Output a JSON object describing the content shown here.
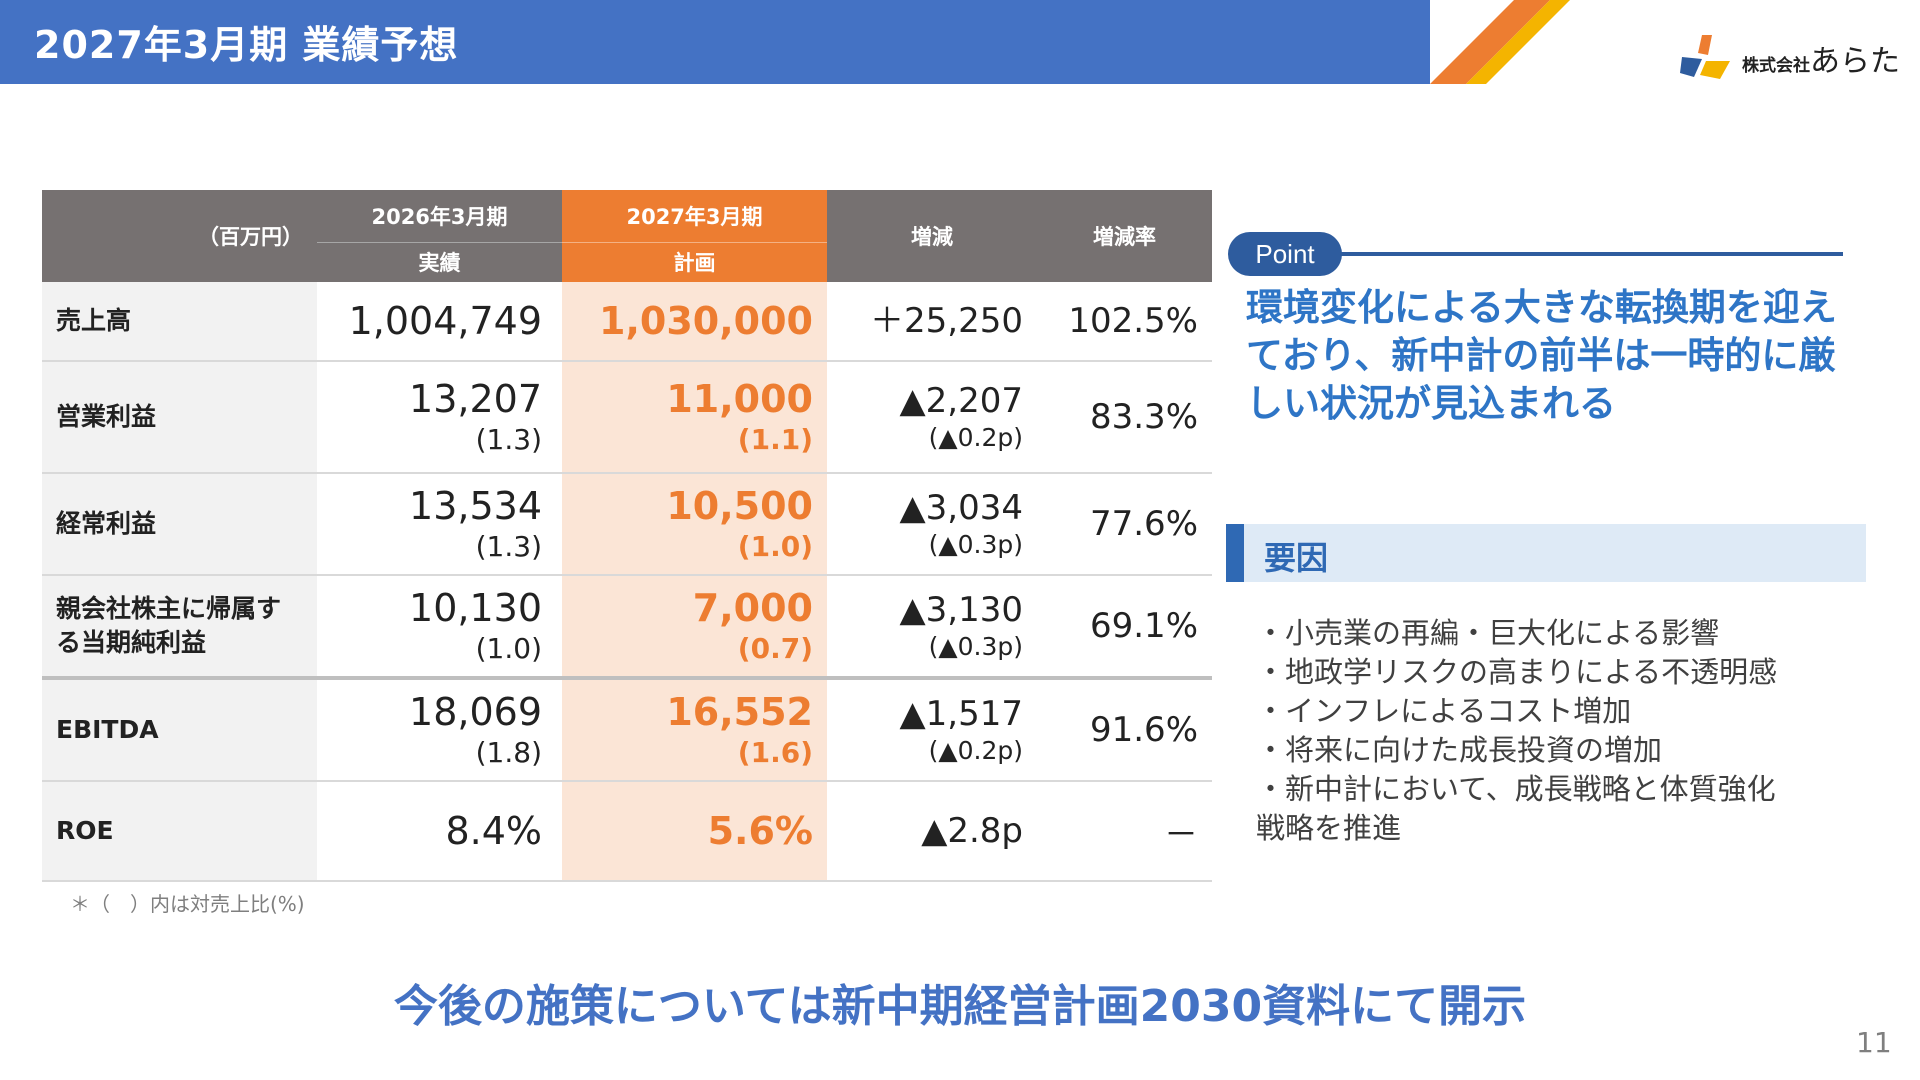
{
  "header": {
    "title": "2027年3月期 業績予想"
  },
  "logo": {
    "prefix": "株式会社",
    "name": "あらた",
    "colors": [
      "#2e5c9e",
      "#f4b400",
      "#ed7d31",
      "#5b9bd5"
    ]
  },
  "table": {
    "unit": "（百万円）",
    "columns": [
      {
        "top": "2026年3月期",
        "bottom": "実績"
      },
      {
        "top": "2027年3月期",
        "bottom": "計画"
      },
      {
        "top": "増減",
        "bottom": ""
      },
      {
        "top": "増減率",
        "bottom": ""
      }
    ],
    "rows": [
      {
        "label": "売上高",
        "actual": "1,004,749",
        "actual_sub": "",
        "plan": "1,030,000",
        "plan_sub": "",
        "diff": "＋25,250",
        "diff_sub": "",
        "rate": "102.5%"
      },
      {
        "label": "営業利益",
        "actual": "13,207",
        "actual_sub": "(1.3)",
        "plan": "11,000",
        "plan_sub": "(1.1)",
        "diff": "▲2,207",
        "diff_sub": "(▲0.2p)",
        "rate": "83.3%"
      },
      {
        "label": "経常利益",
        "actual": "13,534",
        "actual_sub": "(1.3)",
        "plan": "10,500",
        "plan_sub": "(1.0)",
        "diff": "▲3,034",
        "diff_sub": "(▲0.3p)",
        "rate": "77.6%"
      },
      {
        "label": "親会社株主に帰属する当期純利益",
        "actual": "10,130",
        "actual_sub": "(1.0)",
        "plan": "7,000",
        "plan_sub": "(0.7)",
        "diff": "▲3,130",
        "diff_sub": "(▲0.3p)",
        "rate": "69.1%"
      },
      {
        "label": "EBITDA",
        "actual": "18,069",
        "actual_sub": "(1.8)",
        "plan": "16,552",
        "plan_sub": "(1.6)",
        "diff": "▲1,517",
        "diff_sub": "(▲0.2p)",
        "rate": "91.6%"
      },
      {
        "label": "ROE",
        "actual": "8.4%",
        "actual_sub": "",
        "plan": "5.6%",
        "plan_sub": "",
        "diff": "▲2.8p",
        "diff_sub": "",
        "rate": "－"
      }
    ],
    "note": "＊（　）内は対売上比(%)"
  },
  "point": {
    "label": "Point",
    "text": "環境変化による大きな転換期を迎えており、新中計の前半は一時的に厳しい状況が見込まれる"
  },
  "factors": {
    "title": "要因",
    "items": [
      "・小売業の再編・巨大化による影響",
      "・地政学リスクの高まりによる不透明感",
      "・インフレによるコスト増加",
      "・将来に向けた成長投資の増加",
      "・新中計において、成長戦略と体質強化",
      "戦略を推進"
    ]
  },
  "bottom_message": "今後の施策については新中期経営計画2030資料にて開示",
  "page_number": "11"
}
